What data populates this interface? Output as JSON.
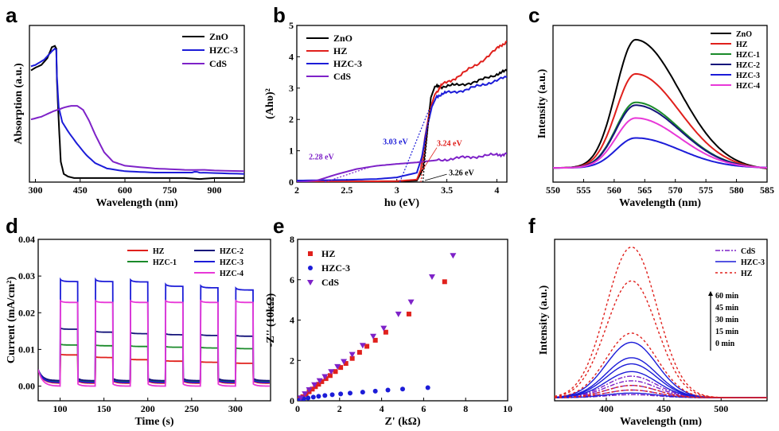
{
  "chart_data": [
    {
      "id": "a",
      "panel_letter": "a",
      "type": "line",
      "xlabel": "Wavelength (nm)",
      "ylabel": "Absorption (a.u.)",
      "xlim": [
        280,
        1000
      ],
      "ylim": [
        0,
        1.15
      ],
      "xticks": [
        300,
        450,
        600,
        750,
        900
      ],
      "show_y_ticks": false,
      "legend": "top-right",
      "series": [
        {
          "name": "ZnO",
          "color": "#000000",
          "x": [
            285,
            300,
            320,
            340,
            355,
            365,
            370,
            372,
            378,
            385,
            395,
            410,
            430,
            500,
            700,
            1000
          ],
          "y": [
            0.82,
            0.84,
            0.86,
            0.91,
            0.99,
            1.0,
            0.98,
            0.75,
            0.45,
            0.15,
            0.06,
            0.04,
            0.03,
            0.03,
            0.03,
            0.03
          ]
        },
        {
          "name": "HZC-3",
          "color": "#1c1cd8",
          "x": [
            285,
            300,
            330,
            355,
            365,
            370,
            372,
            378,
            390,
            410,
            440,
            470,
            500,
            540,
            600,
            700,
            800,
            850,
            1000
          ],
          "y": [
            0.85,
            0.86,
            0.9,
            0.96,
            0.98,
            0.97,
            0.78,
            0.55,
            0.44,
            0.37,
            0.28,
            0.2,
            0.14,
            0.1,
            0.08,
            0.07,
            0.07,
            0.07,
            0.06
          ]
        },
        {
          "name": "CdS",
          "color": "#7e22c8",
          "x": [
            285,
            320,
            360,
            400,
            420,
            440,
            460,
            480,
            500,
            530,
            560,
            600,
            700,
            800,
            1000
          ],
          "y": [
            0.46,
            0.48,
            0.52,
            0.55,
            0.56,
            0.56,
            0.53,
            0.45,
            0.35,
            0.22,
            0.15,
            0.12,
            0.1,
            0.09,
            0.08
          ]
        }
      ]
    },
    {
      "id": "b",
      "panel_letter": "b",
      "type": "line",
      "xlabel": "hυ (eV)",
      "ylabel": "(Ahυ)²",
      "xlim": [
        2.0,
        4.1
      ],
      "ylim": [
        0,
        5
      ],
      "xticks": [
        2.0,
        2.5,
        3.0,
        3.5,
        4.0
      ],
      "yticks": [
        0,
        1,
        2,
        3,
        4,
        5
      ],
      "legend": "top-left",
      "series": [
        {
          "name": "ZnO",
          "color": "#000000",
          "x": [
            2.0,
            2.5,
            3.0,
            3.2,
            3.26,
            3.3,
            3.34,
            3.38,
            3.45,
            3.6,
            3.8,
            4.0,
            4.1
          ],
          "y": [
            0.02,
            0.02,
            0.02,
            0.05,
            0.4,
            1.5,
            2.7,
            3.05,
            3.05,
            3.1,
            3.2,
            3.45,
            3.55
          ]
        },
        {
          "name": "HZ",
          "color": "#e0201c",
          "x": [
            2.0,
            2.5,
            3.0,
            3.2,
            3.24,
            3.28,
            3.33,
            3.38,
            3.45,
            3.6,
            3.8,
            4.0,
            4.1
          ],
          "y": [
            0.02,
            0.02,
            0.03,
            0.08,
            0.4,
            1.4,
            2.3,
            2.8,
            3.1,
            3.35,
            3.75,
            4.25,
            4.5
          ]
        },
        {
          "name": "HZC-3",
          "color": "#1c1cd8",
          "x": [
            2.0,
            2.5,
            2.8,
            3.0,
            3.2,
            3.25,
            3.3,
            3.35,
            3.4,
            3.5,
            3.7,
            3.9,
            4.1
          ],
          "y": [
            0.05,
            0.07,
            0.1,
            0.15,
            0.3,
            0.8,
            1.7,
            2.4,
            2.75,
            2.85,
            2.95,
            3.15,
            3.35
          ]
        },
        {
          "name": "CdS",
          "color": "#7e22c8",
          "x": [
            2.0,
            2.2,
            2.4,
            2.6,
            2.8,
            3.0,
            3.2,
            3.4,
            3.6,
            3.8,
            4.0,
            4.1
          ],
          "y": [
            0.0,
            0.05,
            0.25,
            0.42,
            0.52,
            0.58,
            0.63,
            0.7,
            0.76,
            0.82,
            0.87,
            0.9
          ]
        }
      ],
      "tangents": [
        {
          "color": "#7e22c8",
          "x1": 2.28,
          "y1": 0,
          "x2": 2.75,
          "y2": 0.5
        },
        {
          "color": "#1c1cd8",
          "x1": 3.03,
          "y1": 0,
          "x2": 3.32,
          "y2": 2.3
        },
        {
          "color": "#e0201c",
          "x1": 3.24,
          "y1": 0,
          "x2": 3.33,
          "y2": 2.3
        },
        {
          "color": "#000000",
          "x1": 3.26,
          "y1": 0,
          "x2": 3.34,
          "y2": 2.7
        }
      ],
      "annotations": [
        {
          "text": "2.28 eV",
          "color": "#7e22c8",
          "x": 2.12,
          "y": 0.72
        },
        {
          "text": "3.03 eV",
          "color": "#1c1cd8",
          "x": 2.86,
          "y": 1.2
        },
        {
          "text": "3.24 eV",
          "color": "#e0201c",
          "x": 3.4,
          "y": 1.15
        },
        {
          "text": "3.26 eV",
          "color": "#000000",
          "x": 3.52,
          "y": 0.22
        }
      ]
    },
    {
      "id": "c",
      "panel_letter": "c",
      "type": "line",
      "xlabel": "Wavelength (nm)",
      "ylabel": "Intensity (a.u.)",
      "xlim": [
        550,
        585
      ],
      "ylim": [
        0,
        1.1
      ],
      "xticks": [
        550,
        555,
        560,
        565,
        570,
        575,
        580,
        585
      ],
      "show_y_ticks": false,
      "legend": "top-right",
      "series": [
        {
          "name": "ZnO",
          "color": "#000000",
          "peak": 1.0,
          "base": 0.1
        },
        {
          "name": "HZ",
          "color": "#e0201c",
          "peak": 0.76,
          "base": 0.1
        },
        {
          "name": "HZC-1",
          "color": "#1a8a2a",
          "peak": 0.56,
          "base": 0.1
        },
        {
          "name": "HZC-2",
          "color": "#14147a",
          "peak": 0.54,
          "base": 0.1
        },
        {
          "name": "HZC-3",
          "color": "#1c1cd8",
          "peak": 0.31,
          "base": 0.1
        },
        {
          "name": "HZC-4",
          "color": "#e838d8",
          "peak": 0.45,
          "base": 0.1
        }
      ]
    },
    {
      "id": "d",
      "panel_letter": "d",
      "type": "line",
      "xlabel": "Time (s)",
      "ylabel": "Current (mA/cm²)",
      "xlim": [
        75,
        340
      ],
      "ylim": [
        -0.004,
        0.04
      ],
      "xticks": [
        100,
        150,
        200,
        250,
        300
      ],
      "yticks": [
        0.0,
        0.01,
        0.02,
        0.03,
        0.04
      ],
      "yticklabels": [
        "0.00",
        "0.01",
        "0.02",
        "0.03",
        "0.04"
      ],
      "legend": "top-right",
      "on_off_periods": [
        [
          100,
          120
        ],
        [
          140,
          160
        ],
        [
          180,
          200
        ],
        [
          220,
          240
        ],
        [
          260,
          280
        ],
        [
          300,
          320
        ]
      ],
      "series": [
        {
          "name": "HZ",
          "color": "#e0201c",
          "on_levels": [
            0.0085,
            0.0078,
            0.0072,
            0.0068,
            0.0065,
            0.0062
          ],
          "off_level": 0.0008
        },
        {
          "name": "HZC-1",
          "color": "#1a8a2a",
          "on_levels": [
            0.0112,
            0.011,
            0.0108,
            0.0106,
            0.0104,
            0.0102
          ],
          "off_level": 0.0012
        },
        {
          "name": "HZC-2",
          "color": "#14147a",
          "on_levels": [
            0.0155,
            0.0147,
            0.0143,
            0.014,
            0.0138,
            0.0136
          ],
          "off_level": 0.0015
        },
        {
          "name": "HZC-3",
          "color": "#1c1cd8",
          "on_levels": [
            0.0285,
            0.0285,
            0.0284,
            0.0272,
            0.0268,
            0.0262
          ],
          "off_level": 0.001
        },
        {
          "name": "HZC-4",
          "color": "#e838d8",
          "on_levels": [
            0.0228,
            0.0228,
            0.0228,
            0.0228,
            0.0228,
            0.0228
          ],
          "off_level": 0.0
        }
      ]
    },
    {
      "id": "e",
      "panel_letter": "e",
      "type": "scatter",
      "xlabel": "Z' (kΩ)",
      "ylabel": "-Z'' (10kΩ)",
      "xlim": [
        0,
        10
      ],
      "ylim": [
        0,
        8
      ],
      "xticks": [
        0,
        2,
        4,
        6,
        8,
        10
      ],
      "yticks": [
        0,
        2,
        4,
        6,
        8
      ],
      "legend": "top-left",
      "series": [
        {
          "name": "HZ",
          "color": "#e0201c",
          "marker": "square",
          "x": [
            0.1,
            0.25,
            0.4,
            0.55,
            0.7,
            0.85,
            1.0,
            1.15,
            1.35,
            1.55,
            1.8,
            2.05,
            2.3,
            2.6,
            2.95,
            3.3,
            3.7,
            4.2,
            5.3,
            7.0
          ],
          "y": [
            0.08,
            0.2,
            0.32,
            0.45,
            0.58,
            0.7,
            0.82,
            0.95,
            1.1,
            1.25,
            1.45,
            1.65,
            1.85,
            2.1,
            2.4,
            2.7,
            3.0,
            3.4,
            4.3,
            5.9
          ]
        },
        {
          "name": "HZC-3",
          "color": "#1c1cd8",
          "marker": "circle",
          "x": [
            0.1,
            0.3,
            0.5,
            0.75,
            1.0,
            1.3,
            1.65,
            2.05,
            2.5,
            3.1,
            3.7,
            4.3,
            5.0,
            6.2
          ],
          "y": [
            0.05,
            0.1,
            0.14,
            0.18,
            0.22,
            0.26,
            0.3,
            0.34,
            0.38,
            0.43,
            0.48,
            0.53,
            0.58,
            0.65
          ]
        },
        {
          "name": "CdS",
          "color": "#7e22c8",
          "marker": "triangle-down",
          "x": [
            0.15,
            0.35,
            0.55,
            0.8,
            1.05,
            1.3,
            1.6,
            1.9,
            2.2,
            2.6,
            3.1,
            3.6,
            4.1,
            4.8,
            5.4,
            6.4,
            7.4
          ],
          "y": [
            0.15,
            0.35,
            0.55,
            0.8,
            1.0,
            1.2,
            1.45,
            1.7,
            1.95,
            2.3,
            2.75,
            3.2,
            3.6,
            4.3,
            4.9,
            6.15,
            7.2
          ]
        }
      ]
    },
    {
      "id": "f",
      "panel_letter": "f",
      "type": "line",
      "xlabel": "Wavelength (nm)",
      "ylabel": "Intensity (a.u.)",
      "xlim": [
        355,
        540
      ],
      "ylim": [
        0,
        1.05
      ],
      "xticks": [
        400,
        450,
        500
      ],
      "show_y_ticks": false,
      "legend": "top-right",
      "time_labels": [
        "60 min",
        "45 min",
        "30 min",
        "15 min",
        "0  min"
      ],
      "series": [
        {
          "name": "CdS",
          "color": "#7e22c8",
          "style": "dashdot",
          "peaks": [
            0.02,
            0.05,
            0.08,
            0.11,
            0.14
          ]
        },
        {
          "name": "HZC-3",
          "color": "#1c1cd8",
          "style": "solid",
          "peaks": [
            0.03,
            0.17,
            0.22,
            0.26,
            0.36
          ]
        },
        {
          "name": "HZ",
          "color": "#e0201c",
          "style": "dotted",
          "peaks": [
            0.05,
            0.08,
            0.42,
            0.76,
            0.98
          ]
        }
      ]
    }
  ]
}
